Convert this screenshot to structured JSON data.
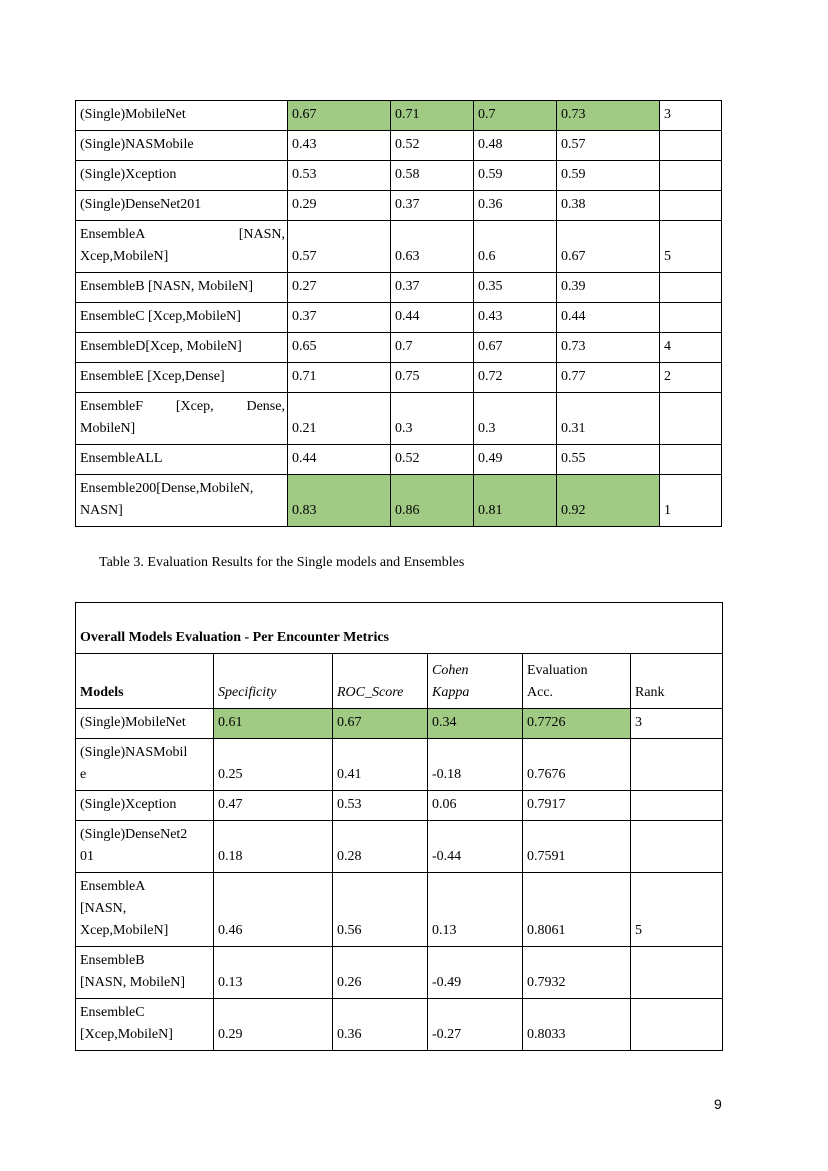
{
  "page": {
    "number": "9"
  },
  "caption": "Table 3. Evaluation Results for the Single models and Ensembles",
  "highlight_color": "#a1cb85",
  "table1": {
    "rows": [
      {
        "name": [
          [
            "(Single)MobileNet"
          ]
        ],
        "values": [
          "0.67",
          "0.71",
          "0.7",
          "0.73"
        ],
        "rank": "3",
        "highlight": true
      },
      {
        "name": [
          [
            "(Single)NASMobile"
          ]
        ],
        "values": [
          "0.43",
          "0.52",
          "0.48",
          "0.57"
        ],
        "rank": "",
        "highlight": false
      },
      {
        "name": [
          [
            "(Single)Xception"
          ]
        ],
        "values": [
          "0.53",
          "0.58",
          "0.59",
          "0.59"
        ],
        "rank": "",
        "highlight": false
      },
      {
        "name": [
          [
            "(Single)DenseNet201"
          ]
        ],
        "values": [
          "0.29",
          "0.37",
          "0.36",
          "0.38"
        ],
        "rank": "",
        "highlight": false
      },
      {
        "name": [
          [
            "EnsembleA",
            "[NASN,"
          ],
          [
            "Xcep,MobileN]"
          ]
        ],
        "values": [
          "0.57",
          "0.63",
          "0.6",
          "0.67"
        ],
        "rank": "5",
        "highlight": false
      },
      {
        "name": [
          [
            "EnsembleB [NASN, MobileN]"
          ]
        ],
        "values": [
          "0.27",
          "0.37",
          "0.35",
          "0.39"
        ],
        "rank": "",
        "highlight": false
      },
      {
        "name": [
          [
            "EnsembleC [Xcep,MobileN]"
          ]
        ],
        "values": [
          "0.37",
          "0.44",
          "0.43",
          "0.44"
        ],
        "rank": "",
        "highlight": false
      },
      {
        "name": [
          [
            "EnsembleD[Xcep, MobileN]"
          ]
        ],
        "values": [
          "0.65",
          "0.7",
          "0.67",
          "0.73"
        ],
        "rank": "4",
        "highlight": false
      },
      {
        "name": [
          [
            "EnsembleE [Xcep,Dense]"
          ]
        ],
        "values": [
          "0.71",
          "0.75",
          "0.72",
          "0.77"
        ],
        "rank": "2",
        "highlight": false
      },
      {
        "name": [
          [
            "EnsembleF",
            "[Xcep,",
            "Dense,"
          ],
          [
            "MobileN]"
          ]
        ],
        "values": [
          "0.21",
          "0.3",
          "0.3",
          "0.31"
        ],
        "rank": "",
        "highlight": false
      },
      {
        "name": [
          [
            "EnsembleALL"
          ]
        ],
        "values": [
          "0.44",
          "0.52",
          "0.49",
          "0.55"
        ],
        "rank": "",
        "highlight": false
      },
      {
        "name": [
          [
            "Ensemble200[Dense,MobileN,"
          ],
          [
            "NASN]"
          ]
        ],
        "values": [
          "0.83",
          "0.86",
          "0.81",
          "0.92"
        ],
        "rank": "1",
        "highlight": true
      }
    ]
  },
  "table2": {
    "title": "Overall Models Evaluation - Per Encounter Metrics",
    "headers": {
      "models": "Models",
      "specificity": "Specificity",
      "roc": "ROC_Score",
      "cohen": [
        "Cohen",
        "Kappa"
      ],
      "eval": [
        "Evaluation",
        "Acc."
      ],
      "rank": "Rank"
    },
    "rows": [
      {
        "name": [
          [
            "(Single)MobileNet"
          ]
        ],
        "values": [
          "0.61",
          "0.67",
          "0.34",
          "0.7726"
        ],
        "rank": "3",
        "highlight": true
      },
      {
        "name": [
          [
            "(Single)NASMobil"
          ],
          [
            "e"
          ]
        ],
        "values": [
          "0.25",
          "0.41",
          "-0.18",
          "0.7676"
        ],
        "rank": "",
        "highlight": false
      },
      {
        "name": [
          [
            "(Single)Xception"
          ]
        ],
        "values": [
          "0.47",
          "0.53",
          "0.06",
          "0.7917"
        ],
        "rank": "",
        "highlight": false
      },
      {
        "name": [
          [
            "(Single)DenseNet2"
          ],
          [
            "01"
          ]
        ],
        "values": [
          "0.18",
          "0.28",
          "-0.44",
          "0.7591"
        ],
        "rank": "",
        "highlight": false
      },
      {
        "name": [
          [
            "EnsembleA"
          ],
          [
            "[NASN,"
          ],
          [
            "Xcep,MobileN]"
          ]
        ],
        "values": [
          "0.46",
          "0.56",
          "0.13",
          "0.8061"
        ],
        "rank": "5",
        "highlight": false
      },
      {
        "name": [
          [
            "EnsembleB"
          ],
          [
            "[NASN, MobileN]"
          ]
        ],
        "values": [
          "0.13",
          "0.26",
          "-0.49",
          "0.7932"
        ],
        "rank": "",
        "highlight": false
      },
      {
        "name": [
          [
            "EnsembleC"
          ],
          [
            "[Xcep,MobileN]"
          ]
        ],
        "values": [
          "0.29",
          "0.36",
          "-0.27",
          "0.8033"
        ],
        "rank": "",
        "highlight": false
      }
    ]
  }
}
